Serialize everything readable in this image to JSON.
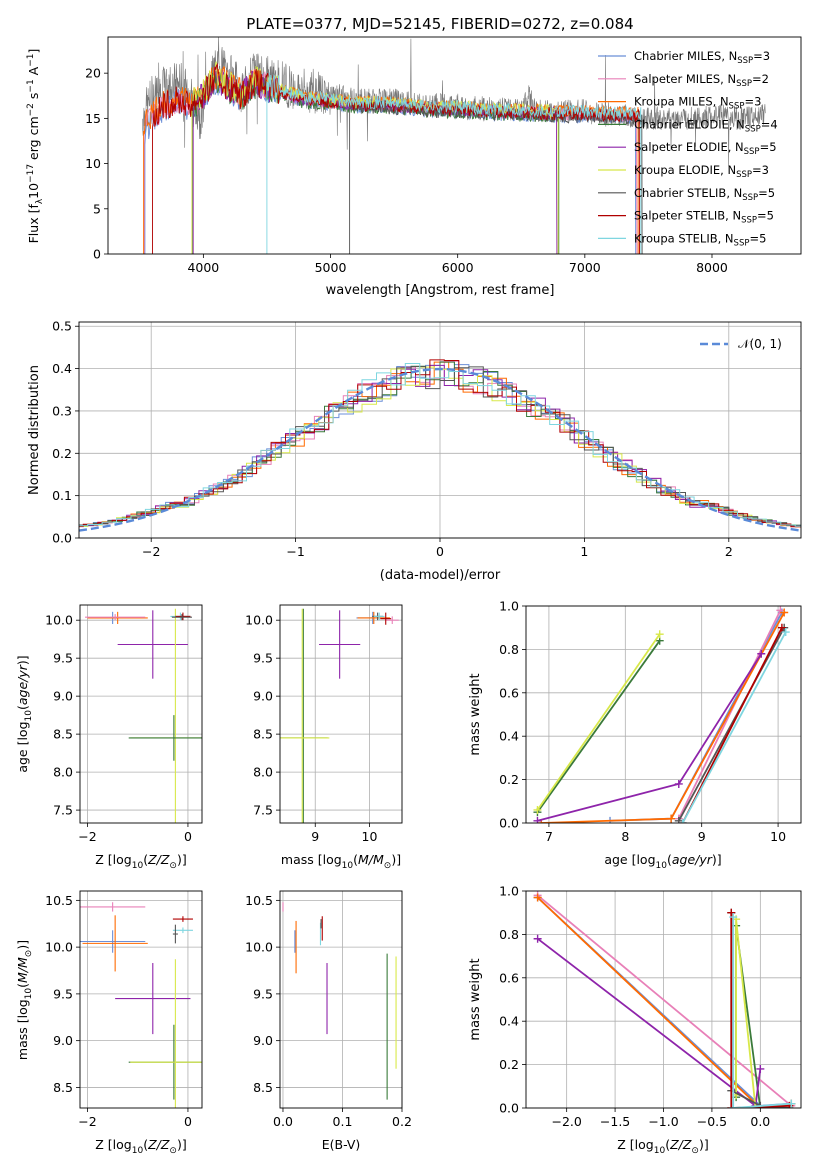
{
  "figure": {
    "title": "PLATE=0377, MJD=52145, FIBERID=0272, z=0.084"
  },
  "colors": {
    "Chabrier MILES": "#6b8fd8",
    "Salpeter MILES": "#e880b8",
    "Kroupa MILES": "#ff6a00",
    "Chabrier ELODIE": "#3a7a3a",
    "Salpeter ELODIE": "#8e24aa",
    "Kroupa ELODIE": "#d8e84a",
    "Chabrier STELIB": "#555555",
    "Salpeter STELIB": "#b00000",
    "Kroupa STELIB": "#7fd6e0",
    "gaussian": "#5a8ad8"
  },
  "chart_data": [
    {
      "id": "spectrum",
      "type": "line",
      "title": "PLATE=0377, MJD=52145, FIBERID=0272, z=0.084",
      "xlabel": "wavelength [Angstrom, rest frame]",
      "ylabel": "Flux [f_λ 10^-17 erg cm^-2 s^-1 A^-1]",
      "xlim": [
        3250,
        8700
      ],
      "ylim": [
        0,
        24
      ],
      "xticks": [
        4000,
        5000,
        6000,
        7000,
        8000
      ],
      "yticks": [
        0,
        5,
        10,
        15,
        20
      ],
      "legend_position": "top-right",
      "legend": [
        {
          "model": "Chabrier MILES",
          "label": "Chabrier MILES, N",
          "nssp": "=3"
        },
        {
          "model": "Salpeter MILES",
          "label": "Salpeter MILES, N",
          "nssp": "=2"
        },
        {
          "model": "Kroupa MILES",
          "label": "Kroupa MILES, N",
          "nssp": "=3"
        },
        {
          "model": "Chabrier ELODIE",
          "label": "Chabrier ELODIE, N",
          "nssp": "=4"
        },
        {
          "model": "Salpeter ELODIE",
          "label": "Salpeter ELODIE, N",
          "nssp": "=5"
        },
        {
          "model": "Kroupa ELODIE",
          "label": "Kroupa ELODIE, N",
          "nssp": "=3"
        },
        {
          "model": "Chabrier STELIB",
          "label": "Chabrier STELIB, N",
          "nssp": "=5"
        },
        {
          "model": "Salpeter STELIB",
          "label": "Salpeter STELIB, N",
          "nssp": "=5"
        },
        {
          "model": "Kroupa STELIB",
          "label": "Kroupa STELIB, N",
          "nssp": "=5"
        }
      ],
      "observed_spectrum": {
        "x": [
          3520,
          3600,
          3700,
          3800,
          3900,
          3960,
          4000,
          4100,
          4200,
          4300,
          4400,
          4500,
          4600,
          4700,
          4800,
          4900,
          5000,
          5100,
          5200,
          5300,
          5400,
          5500,
          5600,
          5700,
          5800,
          5900,
          6000,
          6100,
          6200,
          6300,
          6400,
          6500,
          6563,
          6600,
          6700,
          6800,
          6900,
          7000,
          7100,
          7200,
          7300,
          7400,
          7500,
          7600,
          7700,
          7800,
          7900,
          8000,
          8100,
          8200,
          8300,
          8400
        ],
        "y": [
          15,
          17.5,
          18.5,
          19,
          18,
          14,
          17,
          21,
          20,
          18,
          20,
          19.5,
          19,
          18.5,
          18,
          18,
          17.5,
          17.5,
          17,
          17,
          17,
          17,
          16.8,
          16.5,
          16.5,
          16.5,
          16.5,
          16.3,
          16.2,
          16,
          16,
          16,
          17.5,
          16,
          15.8,
          15.8,
          16,
          15.8,
          15.5,
          15.5,
          15.3,
          15.2,
          15,
          15,
          15,
          15,
          15,
          15.2,
          15.5,
          15,
          15.2,
          15.5
        ]
      },
      "model_continuum": {
        "x": [
          3540,
          3600,
          3700,
          3800,
          3900,
          4000,
          4100,
          4200,
          4300,
          4400,
          4500,
          4600,
          4700,
          4800,
          4900,
          5000,
          5200,
          5400,
          5600,
          5800,
          6000,
          6200,
          6400,
          6600,
          6800,
          7000,
          7200,
          7400
        ],
        "y": [
          14,
          15,
          16.5,
          17,
          16.5,
          17.5,
          19.5,
          18.5,
          17.5,
          19,
          18.5,
          18,
          17.5,
          17,
          17,
          16.8,
          16.5,
          16.5,
          16.3,
          16,
          16,
          15.8,
          15.7,
          15.6,
          15.5,
          15.5,
          15.4,
          15.3
        ]
      }
    },
    {
      "id": "residuals",
      "type": "line",
      "xlabel": "(data-model)/error",
      "ylabel": "Normed distribution",
      "xlim": [
        -2.5,
        2.5
      ],
      "ylim": [
        0,
        0.51
      ],
      "xticks": [
        -2,
        -1,
        0,
        1,
        2
      ],
      "yticks": [
        0.0,
        0.1,
        0.2,
        0.3,
        0.4,
        0.5
      ],
      "grid": true,
      "legend_position": "top-right",
      "series": [
        {
          "name": "𝒩(0, 1)",
          "dist": "normal",
          "mean": 0,
          "sd": 1,
          "style": "dashed"
        }
      ],
      "histograms": {
        "bin_edges_start": -2.5,
        "bin_width": 0.1,
        "approximate_shape": "normal (0,1), all nine models overlap"
      }
    },
    {
      "id": "age_vs_Z",
      "type": "scatter",
      "xlabel": "Z [log10(Z/Z⊙)]",
      "ylabel": "age  [log10(age/yr)]",
      "xlim": [
        -2.15,
        0.28
      ],
      "ylim": [
        7.33,
        10.2
      ],
      "xticks": [
        -2,
        0
      ],
      "yticks": [
        7.5,
        8.0,
        8.5,
        9.0,
        9.5,
        10.0
      ],
      "points": [
        {
          "model": "Chabrier MILES",
          "x": -1.5,
          "y": 10.03,
          "xerr": 0.5,
          "yerr": 0.08
        },
        {
          "model": "Kroupa MILES",
          "x": -1.4,
          "y": 10.03,
          "xerr": 0.6,
          "yerr": 0.08
        },
        {
          "model": "Salpeter MILES",
          "x": -1.45,
          "y": 10.04,
          "xerr": 0.6,
          "yerr": 0.04
        },
        {
          "model": "Salpeter ELODIE",
          "x": -0.7,
          "y": 9.68,
          "xerr": 0.7,
          "yerr": 0.45
        },
        {
          "model": "Kroupa ELODIE",
          "x": -0.25,
          "y": 8.45,
          "xerr": 0.9,
          "yerr": 1.7
        },
        {
          "model": "Chabrier ELODIE",
          "x": -0.28,
          "y": 8.45,
          "xerr": 0.9,
          "yerr": 0.3
        },
        {
          "model": "Kroupa STELIB",
          "x": -0.15,
          "y": 10.05,
          "xerr": 0.2,
          "yerr": 0.05
        },
        {
          "model": "Salpeter STELIB",
          "x": -0.1,
          "y": 10.05,
          "xerr": 0.15,
          "yerr": 0.05
        },
        {
          "model": "Chabrier STELIB",
          "x": -0.12,
          "y": 10.04,
          "xerr": 0.2,
          "yerr": 0.04
        }
      ]
    },
    {
      "id": "age_vs_mass",
      "type": "scatter",
      "xlabel": "mass [log10(M/M⊙)]",
      "ylabel": "",
      "xlim": [
        8.35,
        10.6
      ],
      "ylim": [
        7.33,
        10.2
      ],
      "xticks": [
        9,
        10
      ],
      "yticks": [
        7.5,
        8.0,
        8.5,
        9.0,
        9.5,
        10.0
      ],
      "points": [
        {
          "model": "Chabrier ELODIE",
          "x": 8.78,
          "y": 8.45,
          "xerr": 0.45,
          "yerr": 1.7
        },
        {
          "model": "Kroupa ELODIE",
          "x": 8.76,
          "y": 8.45,
          "xerr": 0.5,
          "yerr": 1.7
        },
        {
          "model": "Salpeter ELODIE",
          "x": 9.45,
          "y": 9.68,
          "xerr": 0.38,
          "yerr": 0.45
        },
        {
          "model": "Chabrier MILES",
          "x": 10.06,
          "y": 10.03,
          "xerr": 0.3,
          "yerr": 0.08
        },
        {
          "model": "Kroupa MILES",
          "x": 10.08,
          "y": 10.03,
          "xerr": 0.3,
          "yerr": 0.08
        },
        {
          "model": "Salpeter MILES",
          "x": 10.42,
          "y": 10.0,
          "xerr": 0.12,
          "yerr": 0.05
        },
        {
          "model": "Chabrier STELIB",
          "x": 10.15,
          "y": 10.05,
          "xerr": 0.1,
          "yerr": 0.05
        },
        {
          "model": "Salpeter STELIB",
          "x": 10.3,
          "y": 10.02,
          "xerr": 0.1,
          "yerr": 0.08
        },
        {
          "model": "Kroupa STELIB",
          "x": 10.18,
          "y": 10.05,
          "xerr": 0.1,
          "yerr": 0.05
        }
      ]
    },
    {
      "id": "weight_vs_age",
      "type": "line",
      "xlabel": "age  [log10(age/yr)]",
      "ylabel": "mass weight",
      "xlim": [
        6.7,
        10.3
      ],
      "ylim": [
        0,
        1.0
      ],
      "xticks": [
        7,
        8,
        9,
        10
      ],
      "yticks": [
        0.0,
        0.2,
        0.4,
        0.6,
        0.8,
        1.0
      ],
      "grid": true,
      "series": [
        {
          "name": "Chabrier MILES",
          "x": [
            7.8,
            8.6,
            10.05
          ],
          "y": [
            0.01,
            0.02,
            0.97
          ]
        },
        {
          "name": "Salpeter MILES",
          "x": [
            8.7,
            10.03
          ],
          "y": [
            0.02,
            0.98
          ]
        },
        {
          "name": "Kroupa MILES",
          "x": [
            6.9,
            8.6,
            10.08
          ],
          "y": [
            0.0,
            0.02,
            0.97
          ]
        },
        {
          "name": "Chabrier ELODIE",
          "x": [
            6.85,
            8.45
          ],
          "y": [
            0.05,
            0.84
          ]
        },
        {
          "name": "Salpeter ELODIE",
          "x": [
            6.85,
            8.7,
            9.78
          ],
          "y": [
            0.01,
            0.18,
            0.78
          ]
        },
        {
          "name": "Kroupa ELODIE",
          "x": [
            6.85,
            8.45
          ],
          "y": [
            0.06,
            0.87
          ]
        },
        {
          "name": "Chabrier STELIB",
          "x": [
            8.7,
            10.08
          ],
          "y": [
            0.01,
            0.9
          ]
        },
        {
          "name": "Salpeter STELIB",
          "x": [
            8.75,
            10.05
          ],
          "y": [
            0.0,
            0.9
          ]
        },
        {
          "name": "Kroupa STELIB",
          "x": [
            8.75,
            10.1
          ],
          "y": [
            0.0,
            0.88
          ]
        }
      ]
    },
    {
      "id": "mass_vs_Z",
      "type": "scatter",
      "xlabel": "Z [log10(Z/Z⊙)]",
      "ylabel": "mass [log10(M/M⊙)]",
      "xlim": [
        -2.15,
        0.28
      ],
      "ylim": [
        8.28,
        10.6
      ],
      "xticks": [
        -2,
        0
      ],
      "yticks": [
        8.5,
        9.0,
        9.5,
        10.0,
        10.5
      ],
      "points": [
        {
          "model": "Salpeter MILES",
          "x": -1.5,
          "y": 10.43,
          "xerr": 0.65,
          "yerr": 0.05
        },
        {
          "model": "Chabrier MILES",
          "x": -1.5,
          "y": 10.06,
          "xerr": 0.65,
          "yerr": 0.12
        },
        {
          "model": "Kroupa MILES",
          "x": -1.45,
          "y": 10.04,
          "xerr": 0.65,
          "yerr": 0.3
        },
        {
          "model": "Salpeter ELODIE",
          "x": -0.7,
          "y": 9.45,
          "xerr": 0.75,
          "yerr": 0.38
        },
        {
          "model": "Chabrier ELODIE",
          "x": -0.28,
          "y": 8.77,
          "xerr": 0.9,
          "yerr": 0.4
        },
        {
          "model": "Kroupa ELODIE",
          "x": -0.25,
          "y": 8.77,
          "xerr": 0.9,
          "yerr": 1.1
        },
        {
          "model": "Salpeter STELIB",
          "x": -0.1,
          "y": 10.3,
          "xerr": 0.2,
          "yerr": 0.03
        },
        {
          "model": "Kroupa STELIB",
          "x": -0.1,
          "y": 10.18,
          "xerr": 0.2,
          "yerr": 0.03
        },
        {
          "model": "Chabrier STELIB",
          "x": -0.25,
          "y": 10.14,
          "xerr": 0.05,
          "yerr": 0.1
        }
      ]
    },
    {
      "id": "mass_vs_EBV",
      "type": "scatter",
      "xlabel": "E(B-V)",
      "ylabel": "",
      "xlim": [
        -0.005,
        0.2
      ],
      "ylim": [
        8.28,
        10.6
      ],
      "xticks": [
        0.0,
        0.1,
        0.2
      ],
      "yticks": [
        8.5,
        9.0,
        9.5,
        10.0,
        10.5
      ],
      "points": [
        {
          "model": "Salpeter MILES",
          "x": 0.0,
          "y": 10.43,
          "yerr": 0.05
        },
        {
          "model": "Chabrier MILES",
          "x": 0.02,
          "y": 10.06,
          "yerr": 0.12
        },
        {
          "model": "Kroupa MILES",
          "x": 0.022,
          "y": 10.0,
          "yerr": 0.28
        },
        {
          "model": "Kroupa STELIB",
          "x": 0.063,
          "y": 10.14,
          "yerr": 0.12
        },
        {
          "model": "Salpeter STELIB",
          "x": 0.066,
          "y": 10.2,
          "yerr": 0.13
        },
        {
          "model": "Chabrier STELIB",
          "x": 0.064,
          "y": 10.25,
          "yerr": 0.05
        },
        {
          "model": "Salpeter ELODIE",
          "x": 0.074,
          "y": 9.45,
          "yerr": 0.38
        },
        {
          "model": "Chabrier ELODIE",
          "x": 0.175,
          "y": 9.15,
          "yerr": 0.78
        },
        {
          "model": "Kroupa ELODIE",
          "x": 0.19,
          "y": 9.3,
          "yerr": 0.6
        }
      ]
    },
    {
      "id": "weight_vs_Z",
      "type": "line",
      "xlabel": "Z [log10(Z/Z⊙)]",
      "ylabel": "mass weight",
      "xlim": [
        -2.42,
        0.42
      ],
      "ylim": [
        0,
        1.0
      ],
      "xticks": [
        -2.0,
        -1.5,
        -1.0,
        -0.5,
        0.0
      ],
      "yticks": [
        0.0,
        0.2,
        0.4,
        0.6,
        0.8,
        1.0
      ],
      "grid": true,
      "series": [
        {
          "name": "Chabrier MILES",
          "x": [
            -2.3,
            0.0,
            0.32
          ],
          "y": [
            0.97,
            0.01,
            0.02
          ]
        },
        {
          "name": "Salpeter MILES",
          "x": [
            -2.3,
            0.32
          ],
          "y": [
            0.98,
            0.01
          ]
        },
        {
          "name": "Kroupa MILES",
          "x": [
            -2.3,
            0.0,
            0.32
          ],
          "y": [
            0.97,
            0.0,
            0.02
          ]
        },
        {
          "name": "Chabrier ELODIE",
          "x": [
            -0.25,
            -0.25,
            0.0
          ],
          "y": [
            0.05,
            0.84,
            0.0
          ]
        },
        {
          "name": "Salpeter ELODIE",
          "x": [
            -2.3,
            -0.05,
            0.0
          ],
          "y": [
            0.78,
            0.01,
            0.18
          ]
        },
        {
          "name": "Kroupa ELODIE",
          "x": [
            -0.25,
            -0.25,
            -0.05
          ],
          "y": [
            0.06,
            0.87,
            0.0
          ]
        },
        {
          "name": "Chabrier STELIB",
          "x": [
            -0.3,
            -0.3,
            0.0,
            0.3
          ],
          "y": [
            0.9,
            0.08,
            0.01,
            0.0
          ]
        },
        {
          "name": "Salpeter STELIB",
          "x": [
            -0.3,
            -0.3,
            0.3
          ],
          "y": [
            0.9,
            0.0,
            0.01
          ]
        },
        {
          "name": "Kroupa STELIB",
          "x": [
            -0.28,
            -0.28,
            0.32
          ],
          "y": [
            0.88,
            0.0,
            0.02
          ]
        }
      ]
    }
  ]
}
